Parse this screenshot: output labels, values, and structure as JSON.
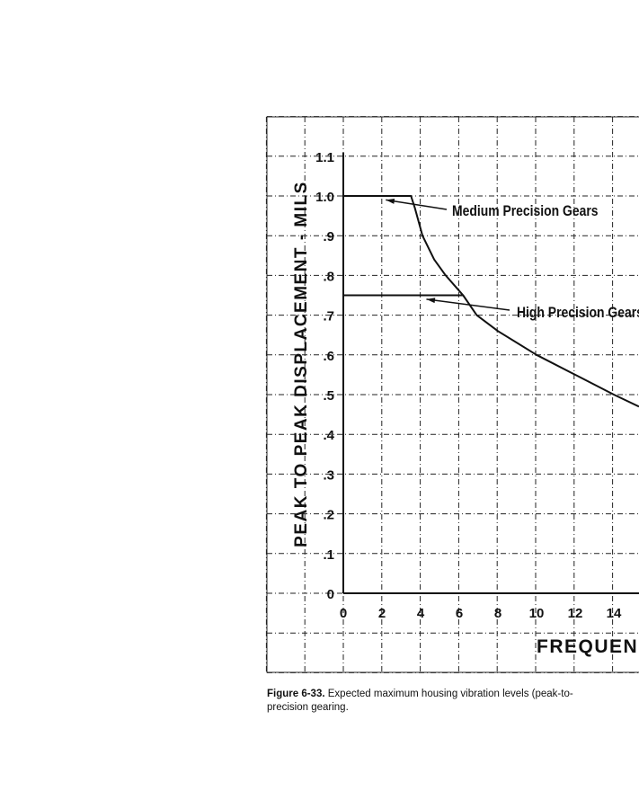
{
  "chart_data": {
    "type": "line",
    "title": "",
    "xlabel": "FREQUENC",
    "ylabel": "PEAK TO PEAK DISPLACEMENT - MILS",
    "xlim": [
      0,
      15.3
    ],
    "ylim": [
      0,
      1.1
    ],
    "grid": true,
    "x_ticks": [
      "0",
      "2",
      "4",
      "6",
      "8",
      "10",
      "12",
      "14"
    ],
    "x_tick_values": [
      0,
      2,
      4,
      6,
      8,
      10,
      12,
      14
    ],
    "y_ticks": [
      "0",
      ".1",
      ".2",
      ".3",
      ".4",
      ".5",
      ".6",
      ".7",
      ".8",
      ".9",
      "1.0",
      "1.1"
    ],
    "y_tick_values": [
      0,
      0.1,
      0.2,
      0.3,
      0.4,
      0.5,
      0.6,
      0.7,
      0.8,
      0.9,
      1.0,
      1.1
    ],
    "series": [
      {
        "name": "Medium Precision Gears",
        "x": [
          0,
          3.5,
          3.7,
          4.1,
          4.7,
          5.3,
          6.2,
          6.9,
          8,
          10,
          12,
          14,
          15.3
        ],
        "y": [
          1.0,
          1.0,
          0.97,
          0.9,
          0.84,
          0.8,
          0.75,
          0.7,
          0.66,
          0.6,
          0.55,
          0.5,
          0.47
        ]
      },
      {
        "name": "High Precision Gears",
        "x": [
          0,
          6.2
        ],
        "y": [
          0.75,
          0.75
        ]
      }
    ],
    "annotations": [
      {
        "text": "Medium Precision Gears",
        "points_to": [
          2.2,
          0.99
        ]
      },
      {
        "text": "High Precision Gears",
        "points_to": [
          4.3,
          0.74
        ]
      }
    ]
  },
  "caption": {
    "label": "Figure 6-33.",
    "text": " Expected maximum housing vibration levels (peak-to-",
    "line2": "precision gearing."
  }
}
